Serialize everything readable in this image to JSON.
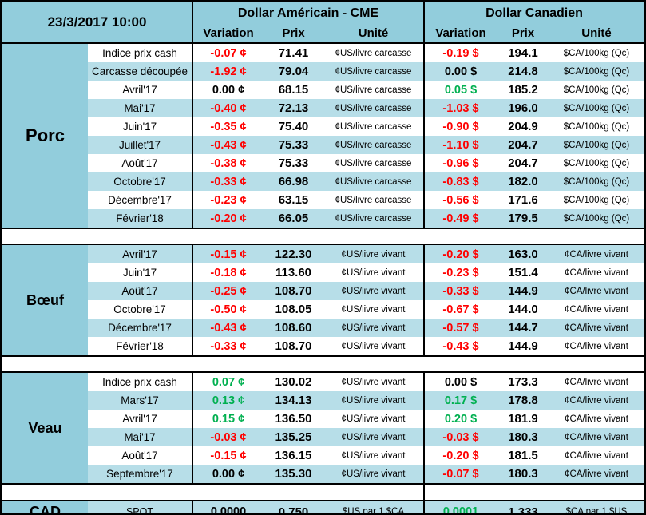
{
  "meta": {
    "timestamp": "23/3/2017 10:00"
  },
  "colors": {
    "medium_blue": "#92CDDC",
    "light_blue": "#B7DEE8",
    "red": "#FF0000",
    "green": "#00B050",
    "black": "#000000",
    "border": "#000000"
  },
  "header": {
    "us_title": "Dollar Américain - CME",
    "ca_title": "Dollar Canadien",
    "col_variation": "Variation",
    "col_prix": "Prix",
    "col_unite": "Unité"
  },
  "sections": [
    {
      "label": "Porc",
      "label_size": 22,
      "rows": [
        {
          "name": "Indice prix cash",
          "shade": false,
          "us": {
            "var": "-0.07 ¢",
            "var_color": "red",
            "prix": "71.41",
            "unite": "¢US/livre carcasse"
          },
          "ca": {
            "var": "-0.19 $",
            "var_color": "red",
            "prix": "194.1",
            "unite": "$CA/100kg (Qc)"
          }
        },
        {
          "name": "Carcasse découpée",
          "shade": true,
          "us": {
            "var": "-1.92 ¢",
            "var_color": "red",
            "prix": "79.04",
            "unite": "¢US/livre carcasse"
          },
          "ca": {
            "var": "0.00 $",
            "var_color": "black",
            "prix": "214.8",
            "unite": "$CA/100kg (Qc)"
          }
        },
        {
          "name": "Avril'17",
          "shade": false,
          "us": {
            "var": "0.00 ¢",
            "var_color": "black",
            "prix": "68.15",
            "unite": "¢US/livre carcasse"
          },
          "ca": {
            "var": "0.05 $",
            "var_color": "green",
            "prix": "185.2",
            "unite": "$CA/100kg (Qc)"
          }
        },
        {
          "name": "Mai'17",
          "shade": true,
          "us": {
            "var": "-0.40 ¢",
            "var_color": "red",
            "prix": "72.13",
            "unite": "¢US/livre carcasse"
          },
          "ca": {
            "var": "-1.03 $",
            "var_color": "red",
            "prix": "196.0",
            "unite": "$CA/100kg (Qc)"
          }
        },
        {
          "name": "Juin'17",
          "shade": false,
          "us": {
            "var": "-0.35 ¢",
            "var_color": "red",
            "prix": "75.40",
            "unite": "¢US/livre carcasse"
          },
          "ca": {
            "var": "-0.90 $",
            "var_color": "red",
            "prix": "204.9",
            "unite": "$CA/100kg (Qc)"
          }
        },
        {
          "name": "Juillet'17",
          "shade": true,
          "us": {
            "var": "-0.43 ¢",
            "var_color": "red",
            "prix": "75.33",
            "unite": "¢US/livre carcasse"
          },
          "ca": {
            "var": "-1.10 $",
            "var_color": "red",
            "prix": "204.7",
            "unite": "$CA/100kg (Qc)"
          }
        },
        {
          "name": "Août'17",
          "shade": false,
          "us": {
            "var": "-0.38 ¢",
            "var_color": "red",
            "prix": "75.33",
            "unite": "¢US/livre carcasse"
          },
          "ca": {
            "var": "-0.96 $",
            "var_color": "red",
            "prix": "204.7",
            "unite": "$CA/100kg (Qc)"
          }
        },
        {
          "name": "Octobre'17",
          "shade": true,
          "us": {
            "var": "-0.33 ¢",
            "var_color": "red",
            "prix": "66.98",
            "unite": "¢US/livre carcasse"
          },
          "ca": {
            "var": "-0.83 $",
            "var_color": "red",
            "prix": "182.0",
            "unite": "$CA/100kg (Qc)"
          }
        },
        {
          "name": "Décembre'17",
          "shade": false,
          "us": {
            "var": "-0.23 ¢",
            "var_color": "red",
            "prix": "63.15",
            "unite": "¢US/livre carcasse"
          },
          "ca": {
            "var": "-0.56 $",
            "var_color": "red",
            "prix": "171.6",
            "unite": "$CA/100kg (Qc)"
          }
        },
        {
          "name": "Février'18",
          "shade": true,
          "us": {
            "var": "-0.20 ¢",
            "var_color": "red",
            "prix": "66.05",
            "unite": "¢US/livre carcasse"
          },
          "ca": {
            "var": "-0.49 $",
            "var_color": "red",
            "prix": "179.5",
            "unite": "$CA/100kg (Qc)"
          }
        }
      ]
    },
    {
      "label": "Bœuf",
      "label_size": 18,
      "rows": [
        {
          "name": "Avril'17",
          "shade": true,
          "us": {
            "var": "-0.15 ¢",
            "var_color": "red",
            "prix": "122.30",
            "unite": "¢US/livre vivant"
          },
          "ca": {
            "var": "-0.20 $",
            "var_color": "red",
            "prix": "163.0",
            "unite": "¢CA/livre vivant"
          }
        },
        {
          "name": "Juin'17",
          "shade": false,
          "us": {
            "var": "-0.18 ¢",
            "var_color": "red",
            "prix": "113.60",
            "unite": "¢US/livre vivant"
          },
          "ca": {
            "var": "-0.23 $",
            "var_color": "red",
            "prix": "151.4",
            "unite": "¢CA/livre vivant"
          }
        },
        {
          "name": "Août'17",
          "shade": true,
          "us": {
            "var": "-0.25 ¢",
            "var_color": "red",
            "prix": "108.70",
            "unite": "¢US/livre vivant"
          },
          "ca": {
            "var": "-0.33 $",
            "var_color": "red",
            "prix": "144.9",
            "unite": "¢CA/livre vivant"
          }
        },
        {
          "name": "Octobre'17",
          "shade": false,
          "us": {
            "var": "-0.50 ¢",
            "var_color": "red",
            "prix": "108.05",
            "unite": "¢US/livre vivant"
          },
          "ca": {
            "var": "-0.67 $",
            "var_color": "red",
            "prix": "144.0",
            "unite": "¢CA/livre vivant"
          }
        },
        {
          "name": "Décembre'17",
          "shade": true,
          "us": {
            "var": "-0.43 ¢",
            "var_color": "red",
            "prix": "108.60",
            "unite": "¢US/livre vivant"
          },
          "ca": {
            "var": "-0.57 $",
            "var_color": "red",
            "prix": "144.7",
            "unite": "¢CA/livre vivant"
          }
        },
        {
          "name": "Février'18",
          "shade": false,
          "us": {
            "var": "-0.33 ¢",
            "var_color": "red",
            "prix": "108.70",
            "unite": "¢US/livre vivant"
          },
          "ca": {
            "var": "-0.43 $",
            "var_color": "red",
            "prix": "144.9",
            "unite": "¢CA/livre vivant"
          }
        }
      ]
    },
    {
      "label": "Veau",
      "label_size": 18,
      "rows": [
        {
          "name": "Indice prix cash",
          "shade": false,
          "us": {
            "var": "0.07 ¢",
            "var_color": "green",
            "prix": "130.02",
            "unite": "¢US/livre vivant"
          },
          "ca": {
            "var": "0.00 $",
            "var_color": "black",
            "prix": "173.3",
            "unite": "¢CA/livre vivant"
          }
        },
        {
          "name": "Mars'17",
          "shade": true,
          "us": {
            "var": "0.13 ¢",
            "var_color": "green",
            "prix": "134.13",
            "unite": "¢US/livre vivant"
          },
          "ca": {
            "var": "0.17 $",
            "var_color": "green",
            "prix": "178.8",
            "unite": "¢CA/livre vivant"
          }
        },
        {
          "name": "Avril'17",
          "shade": false,
          "us": {
            "var": "0.15 ¢",
            "var_color": "green",
            "prix": "136.50",
            "unite": "¢US/livre vivant"
          },
          "ca": {
            "var": "0.20 $",
            "var_color": "green",
            "prix": "181.9",
            "unite": "¢CA/livre vivant"
          }
        },
        {
          "name": "Mai'17",
          "shade": true,
          "us": {
            "var": "-0.03 ¢",
            "var_color": "red",
            "prix": "135.25",
            "unite": "¢US/livre vivant"
          },
          "ca": {
            "var": "-0.03 $",
            "var_color": "red",
            "prix": "180.3",
            "unite": "¢CA/livre vivant"
          }
        },
        {
          "name": "Août'17",
          "shade": false,
          "us": {
            "var": "-0.15 ¢",
            "var_color": "red",
            "prix": "136.15",
            "unite": "¢US/livre vivant"
          },
          "ca": {
            "var": "-0.20 $",
            "var_color": "red",
            "prix": "181.5",
            "unite": "¢CA/livre vivant"
          }
        },
        {
          "name": "Septembre'17",
          "shade": true,
          "us": {
            "var": "0.00 ¢",
            "var_color": "black",
            "prix": "135.30",
            "unite": "¢US/livre vivant"
          },
          "ca": {
            "var": "-0.07 $",
            "var_color": "red",
            "prix": "180.3",
            "unite": "¢CA/livre vivant"
          }
        }
      ]
    }
  ],
  "cad": {
    "label": "CAD",
    "name": "SPOT",
    "us": {
      "var": "0.0000",
      "var_color": "black",
      "prix": "0.750",
      "unite": "$US par 1 $CA"
    },
    "ca": {
      "var": "0.0001",
      "var_color": "green",
      "prix": "1.333",
      "unite": "$CA par 1 $US"
    }
  }
}
